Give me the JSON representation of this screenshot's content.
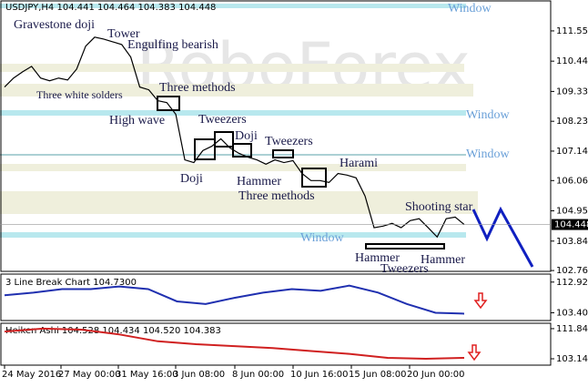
{
  "chart_data": [
    {
      "type": "line",
      "title": "USDJPY,H4 104.441 104.464 104.383 104.448",
      "color": "#000000",
      "values": [
        109.49,
        109.82,
        110.05,
        110.25,
        109.82,
        109.72,
        109.82,
        109.75,
        110.15,
        110.99,
        111.32,
        111.25,
        111.15,
        111.05,
        110.59,
        109.49,
        109.39,
        108.99,
        108.92,
        108.49,
        106.82,
        106.72,
        107.16,
        107.32,
        107.59,
        107.26,
        107.06,
        106.92,
        106.82,
        106.66,
        106.82,
        106.72,
        106.79,
        106.32,
        106.06,
        106.06,
        105.99,
        106.32,
        106.26,
        106.16,
        105.49,
        104.33,
        104.39,
        104.49,
        104.33,
        104.59,
        104.66,
        104.33,
        103.99,
        104.66,
        104.72,
        104.448
      ],
      "ylim": [
        102.73,
        112.65
      ],
      "yticks": [
        {
          "value": 111.55,
          "label": "111.550"
        },
        {
          "value": 110.44,
          "label": "110.440"
        },
        {
          "value": 109.33,
          "label": "109.330"
        },
        {
          "value": 108.235,
          "label": "108.235"
        },
        {
          "value": 107.14,
          "label": "107.140"
        },
        {
          "value": 106.06,
          "label": "106.060"
        },
        {
          "value": 104.95,
          "label": "104.950"
        },
        {
          "value": 103.84,
          "label": "103.840"
        },
        {
          "value": 102.76,
          "label": "102.760"
        }
      ],
      "price_label": {
        "value": 104.448,
        "label": "104.448"
      },
      "annotations": [
        "Window",
        "Gravestone doji",
        "Tower",
        "Engulfing bearish",
        "Three white solders",
        "Three methods",
        "High wave",
        "Tweezers",
        "Window",
        "Doji",
        "Tweezers",
        "Window",
        "Doji",
        "Hammer",
        "Three methods",
        "Harami",
        "Shooting star",
        "Window",
        "Hammer",
        "Tweezers",
        "Hammer"
      ],
      "watermark": "RoboForex"
    },
    {
      "type": "line",
      "title": "3 Line Break Chart 104.7300",
      "color": "#2030b0",
      "values": [
        108.84,
        109.66,
        110.75,
        110.75,
        111.56,
        110.75,
        106.94,
        106.12,
        108.03,
        109.66,
        110.75,
        110.2,
        111.83,
        109.66,
        106.12,
        103.4,
        103.13
      ],
      "ylim": [
        101.0,
        115.4
      ],
      "yticks": [
        {
          "value": 112.9206,
          "label": "112.9206"
        },
        {
          "value": 103.4044,
          "label": "103.4044"
        }
      ]
    },
    {
      "type": "line",
      "title": "Heiken Ashi 104.528 104.434 104.520 104.383",
      "color": "#d02020",
      "values": [
        111.0,
        111.84,
        111.56,
        110.16,
        108.19,
        107.35,
        106.79,
        106.23,
        105.39,
        104.55,
        103.42,
        103.14,
        103.42
      ],
      "ylim": [
        101.3,
        113.4
      ],
      "yticks": [
        {
          "value": 111.84,
          "label": "111.84"
        },
        {
          "value": 103.144,
          "label": "103.144"
        }
      ],
      "x_labels": [
        "24 May 2016",
        "27 May 00:00",
        "31 May 16:00",
        "3 Jun 08:00",
        "8 Jun 00:00",
        "10 Jun 16:00",
        "15 Jun 08:00",
        "20 Jun 00:00"
      ]
    }
  ]
}
